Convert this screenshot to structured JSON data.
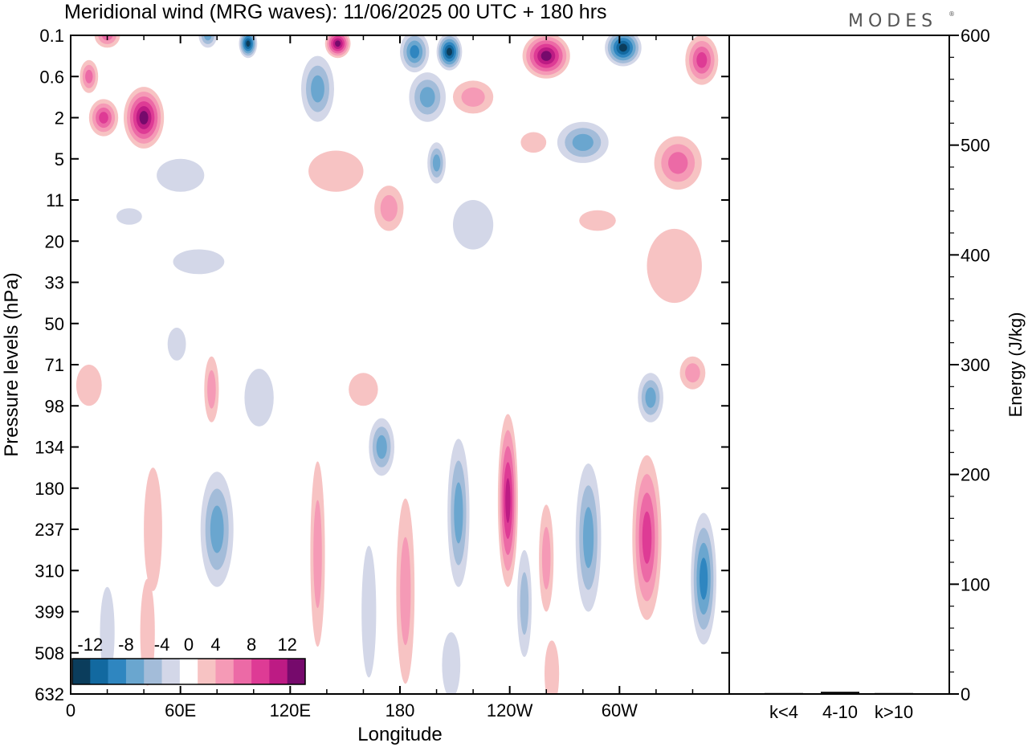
{
  "brand": "MODES",
  "chart_data": [
    {
      "type": "heatmap",
      "title": "Meridional wind (MRG waves):  11/06/2025  00 UTC  + 180 hrs",
      "xlabel": "Longitude",
      "ylabel": "Pressure levels (hPa)",
      "x_ticks": [
        "0",
        "60E",
        "120E",
        "180",
        "120W",
        "60W"
      ],
      "x_tick_values": [
        0,
        60,
        120,
        180,
        240,
        300
      ],
      "xlim": [
        0,
        360
      ],
      "y_ticks": [
        "0.1",
        "0.6",
        "2",
        "5",
        "11",
        "20",
        "33",
        "50",
        "71",
        "98",
        "134",
        "180",
        "237",
        "310",
        "399",
        "508",
        "632"
      ],
      "colorbar": {
        "labels": [
          "-12",
          "-8",
          "-4",
          "0",
          "4",
          "8",
          "12"
        ],
        "levels": [
          -14,
          -12,
          -10,
          -8,
          -6,
          -4,
          -2,
          2,
          4,
          6,
          8,
          10,
          12,
          14
        ],
        "colors": [
          "#0b3d5c",
          "#1269a0",
          "#2f86c0",
          "#6aa6cf",
          "#a3bcd9",
          "#d3d7e8",
          "#ffffff",
          "#f7c3c3",
          "#f59ab6",
          "#ec6aa6",
          "#de3b95",
          "#bd1b84",
          "#760a6c"
        ]
      },
      "regions": [
        {
          "lon": 40,
          "lev": 2,
          "w": 22,
          "h": 1.5,
          "v": 13
        },
        {
          "lon": 18,
          "lev": 2,
          "w": 16,
          "h": 0.9,
          "v": 9
        },
        {
          "lon": 10,
          "lev": 1,
          "w": 10,
          "h": 0.8,
          "v": 8
        },
        {
          "lon": 20,
          "lev": 0,
          "w": 14,
          "h": 0.6,
          "v": 8
        },
        {
          "lon": 75,
          "lev": 0,
          "w": 10,
          "h": 0.6,
          "v": -8
        },
        {
          "lon": 97,
          "lev": 0.2,
          "w": 10,
          "h": 0.7,
          "v": -14
        },
        {
          "lon": 146,
          "lev": 0.2,
          "w": 14,
          "h": 0.7,
          "v": 14
        },
        {
          "lon": 188,
          "lev": 0.4,
          "w": 16,
          "h": 1.0,
          "v": -10
        },
        {
          "lon": 207,
          "lev": 0.4,
          "w": 14,
          "h": 0.9,
          "v": -14
        },
        {
          "lon": 260,
          "lev": 0.5,
          "w": 26,
          "h": 1.1,
          "v": 14
        },
        {
          "lon": 302,
          "lev": 0.3,
          "w": 20,
          "h": 0.9,
          "v": -14
        },
        {
          "lon": 345,
          "lev": 0.6,
          "w": 18,
          "h": 1.2,
          "v": 10
        },
        {
          "lon": 135,
          "lev": 1.3,
          "w": 18,
          "h": 1.6,
          "v": -7
        },
        {
          "lon": 195,
          "lev": 1.5,
          "w": 20,
          "h": 1.2,
          "v": -7
        },
        {
          "lon": 220,
          "lev": 1.5,
          "w": 22,
          "h": 0.8,
          "v": 5
        },
        {
          "lon": 280,
          "lev": 2.6,
          "w": 28,
          "h": 1.0,
          "v": -8
        },
        {
          "lon": 332,
          "lev": 3.1,
          "w": 26,
          "h": 1.3,
          "v": 8
        },
        {
          "lon": 253,
          "lev": 2.6,
          "w": 14,
          "h": 0.5,
          "v": 3
        },
        {
          "lon": 200,
          "lev": 3.1,
          "w": 10,
          "h": 1.0,
          "v": -7
        },
        {
          "lon": 145,
          "lev": 3.3,
          "w": 30,
          "h": 1.0,
          "v": 2.5
        },
        {
          "lon": 60,
          "lev": 3.4,
          "w": 26,
          "h": 0.8,
          "v": -2.5
        },
        {
          "lon": 174,
          "lev": 4.2,
          "w": 16,
          "h": 1.1,
          "v": 5
        },
        {
          "lon": 220,
          "lev": 4.6,
          "w": 22,
          "h": 1.2,
          "v": -2.5
        },
        {
          "lon": 288,
          "lev": 4.5,
          "w": 20,
          "h": 0.5,
          "v": 2.5
        },
        {
          "lon": 70,
          "lev": 5.5,
          "w": 28,
          "h": 0.6,
          "v": -2.5
        },
        {
          "lon": 32,
          "lev": 4.4,
          "w": 14,
          "h": 0.4,
          "v": -2.5
        },
        {
          "lon": 330,
          "lev": 5.6,
          "w": 30,
          "h": 1.8,
          "v": 2.5
        },
        {
          "lon": 58,
          "lev": 7.5,
          "w": 10,
          "h": 0.8,
          "v": -2.5
        },
        {
          "lon": 10,
          "lev": 8.5,
          "w": 14,
          "h": 1.0,
          "v": 2.5
        },
        {
          "lon": 77,
          "lev": 8.6,
          "w": 8,
          "h": 1.6,
          "v": 5
        },
        {
          "lon": 103,
          "lev": 8.8,
          "w": 16,
          "h": 1.4,
          "v": -2.5
        },
        {
          "lon": 160,
          "lev": 8.6,
          "w": 16,
          "h": 0.8,
          "v": 2.5
        },
        {
          "lon": 340,
          "lev": 8.2,
          "w": 14,
          "h": 0.8,
          "v": 5
        },
        {
          "lon": 317,
          "lev": 8.8,
          "w": 14,
          "h": 1.2,
          "v": -7
        },
        {
          "lon": 170,
          "lev": 10.0,
          "w": 14,
          "h": 1.4,
          "v": -7
        },
        {
          "lon": 80,
          "lev": 12.0,
          "w": 18,
          "h": 2.8,
          "v": -8
        },
        {
          "lon": 45,
          "lev": 12.0,
          "w": 10,
          "h": 3.0,
          "v": 3
        },
        {
          "lon": 135,
          "lev": 12.6,
          "w": 8,
          "h": 4.5,
          "v": 5
        },
        {
          "lon": 183,
          "lev": 13.5,
          "w": 10,
          "h": 4.5,
          "v": 6
        },
        {
          "lon": 212,
          "lev": 11.6,
          "w": 12,
          "h": 3.6,
          "v": -8
        },
        {
          "lon": 239,
          "lev": 11.3,
          "w": 11,
          "h": 4.2,
          "v": 12
        },
        {
          "lon": 260,
          "lev": 12.7,
          "w": 8,
          "h": 2.6,
          "v": 6
        },
        {
          "lon": 248,
          "lev": 13.8,
          "w": 8,
          "h": 2.6,
          "v": -5
        },
        {
          "lon": 283,
          "lev": 12.2,
          "w": 14,
          "h": 3.6,
          "v": -8
        },
        {
          "lon": 315,
          "lev": 12.2,
          "w": 16,
          "h": 4.0,
          "v": 10
        },
        {
          "lon": 346,
          "lev": 13.2,
          "w": 14,
          "h": 3.2,
          "v": -9
        },
        {
          "lon": 163,
          "lev": 14.0,
          "w": 8,
          "h": 3.2,
          "v": -3
        },
        {
          "lon": 20,
          "lev": 14.5,
          "w": 8,
          "h": 2.2,
          "v": -2.5
        },
        {
          "lon": 42,
          "lev": 14.5,
          "w": 8,
          "h": 2.6,
          "v": 2.5
        },
        {
          "lon": 208,
          "lev": 15.3,
          "w": 10,
          "h": 1.6,
          "v": -2.5
        },
        {
          "lon": 263,
          "lev": 15.5,
          "w": 8,
          "h": 1.6,
          "v": 2.5
        }
      ]
    },
    {
      "type": "bar",
      "categories": [
        "k<4",
        "4-10",
        "k>10"
      ],
      "values": [
        0,
        2,
        0
      ],
      "ylabel": "Energy (J/kg)",
      "ylim": [
        0,
        600
      ],
      "y_ticks": [
        "0",
        "100",
        "200",
        "300",
        "400",
        "500",
        "600"
      ],
      "y_tick_values": [
        0,
        100,
        200,
        300,
        400,
        500,
        600
      ]
    }
  ]
}
